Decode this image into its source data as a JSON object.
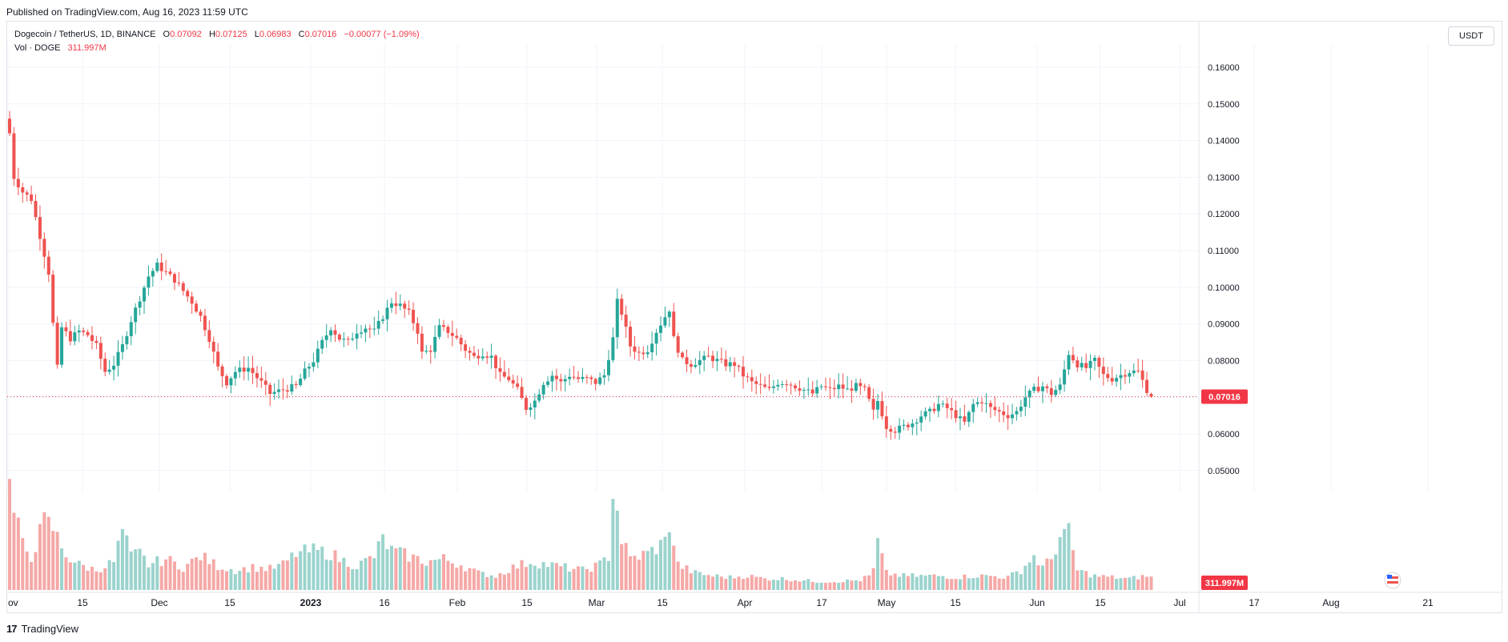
{
  "header": {
    "published": "Published on TradingView.com, Aug 16, 2023 11:59 UTC"
  },
  "legend": {
    "symbol": "Dogecoin / TetherUS, 1D, BINANCE",
    "open_label": "O",
    "open": "0.07092",
    "high_label": "H",
    "high": "0.07125",
    "low_label": "L",
    "low": "0.06983",
    "close_label": "C",
    "close": "0.07016",
    "change": "−0.00077 (−1.09%)",
    "volume_label": "Vol · DOGE",
    "volume": "311.997M"
  },
  "currency_button": "USDT",
  "footer": {
    "logo": "17",
    "brand": "TradingView"
  },
  "colors": {
    "up": "#26a69a",
    "down": "#ef5350",
    "up_volume": "#9bd3cd",
    "down_volume": "#f5a8a6",
    "last_price": "#f23645"
  },
  "chart_data": {
    "type": "candlestick",
    "y_axis": {
      "ticks": [
        "0.16000",
        "0.15000",
        "0.14000",
        "0.13000",
        "0.12000",
        "0.11000",
        "0.10000",
        "0.09000",
        "0.08000",
        "0.07000",
        "0.06000",
        "0.05000"
      ],
      "range": [
        0.046,
        0.167
      ]
    },
    "x_axis": {
      "labels": [
        "ov",
        "15",
        "Dec",
        "15",
        "2023",
        "16",
        "Feb",
        "15",
        "Mar",
        "15",
        "Apr",
        "17",
        "May",
        "15",
        "Jun",
        "15",
        "Jul",
        "17",
        "Aug",
        "21"
      ]
    },
    "last_price": 0.07016,
    "last_price_label": "0.07016",
    "last_volume_label": "311.997M",
    "grid": true,
    "legend_position": "top-left",
    "price_anchors": [
      [
        0,
        0.142
      ],
      [
        1,
        0.13
      ],
      [
        3,
        0.126
      ],
      [
        5,
        0.124
      ],
      [
        7,
        0.114
      ],
      [
        9,
        0.104
      ],
      [
        10,
        0.09
      ],
      [
        11,
        0.078
      ],
      [
        12,
        0.089
      ],
      [
        14,
        0.086
      ],
      [
        16,
        0.088
      ],
      [
        18,
        0.087
      ],
      [
        20,
        0.084
      ],
      [
        22,
        0.077
      ],
      [
        24,
        0.079
      ],
      [
        26,
        0.084
      ],
      [
        28,
        0.091
      ],
      [
        30,
        0.097
      ],
      [
        32,
        0.103
      ],
      [
        34,
        0.106
      ],
      [
        36,
        0.104
      ],
      [
        38,
        0.102
      ],
      [
        40,
        0.099
      ],
      [
        42,
        0.096
      ],
      [
        44,
        0.092
      ],
      [
        46,
        0.086
      ],
      [
        48,
        0.078
      ],
      [
        50,
        0.074
      ],
      [
        52,
        0.077
      ],
      [
        55,
        0.078
      ],
      [
        58,
        0.074
      ],
      [
        60,
        0.071
      ],
      [
        63,
        0.072
      ],
      [
        66,
        0.073
      ],
      [
        68,
        0.077
      ],
      [
        70,
        0.08
      ],
      [
        72,
        0.085
      ],
      [
        74,
        0.089
      ],
      [
        76,
        0.086
      ],
      [
        78,
        0.085
      ],
      [
        80,
        0.088
      ],
      [
        82,
        0.089
      ],
      [
        84,
        0.088
      ],
      [
        86,
        0.092
      ],
      [
        88,
        0.096
      ],
      [
        90,
        0.095
      ],
      [
        92,
        0.093
      ],
      [
        94,
        0.088
      ],
      [
        95,
        0.082
      ],
      [
        97,
        0.083
      ],
      [
        99,
        0.089
      ],
      [
        101,
        0.088
      ],
      [
        103,
        0.086
      ],
      [
        105,
        0.083
      ],
      [
        107,
        0.081
      ],
      [
        109,
        0.082
      ],
      [
        111,
        0.081
      ],
      [
        113,
        0.076
      ],
      [
        115,
        0.075
      ],
      [
        117,
        0.072
      ],
      [
        119,
        0.067
      ],
      [
        121,
        0.069
      ],
      [
        123,
        0.074
      ],
      [
        125,
        0.076
      ],
      [
        127,
        0.074
      ],
      [
        129,
        0.076
      ],
      [
        131,
        0.075
      ],
      [
        133,
        0.075
      ],
      [
        135,
        0.074
      ],
      [
        137,
        0.076
      ],
      [
        139,
        0.086
      ],
      [
        140,
        0.096
      ],
      [
        141,
        0.093
      ],
      [
        143,
        0.084
      ],
      [
        145,
        0.082
      ],
      [
        147,
        0.083
      ],
      [
        149,
        0.088
      ],
      [
        151,
        0.092
      ],
      [
        152,
        0.094
      ],
      [
        153,
        0.086
      ],
      [
        155,
        0.08
      ],
      [
        157,
        0.079
      ],
      [
        159,
        0.08
      ],
      [
        161,
        0.081
      ],
      [
        163,
        0.08
      ],
      [
        165,
        0.079
      ],
      [
        167,
        0.079
      ],
      [
        169,
        0.076
      ],
      [
        171,
        0.074
      ],
      [
        173,
        0.073
      ],
      [
        175,
        0.072
      ],
      [
        177,
        0.074
      ],
      [
        179,
        0.074
      ],
      [
        181,
        0.073
      ],
      [
        183,
        0.072
      ],
      [
        185,
        0.071
      ],
      [
        187,
        0.073
      ],
      [
        189,
        0.072
      ],
      [
        191,
        0.073
      ],
      [
        193,
        0.072
      ],
      [
        195,
        0.073
      ],
      [
        197,
        0.072
      ],
      [
        199,
        0.066
      ],
      [
        200,
        0.069
      ],
      [
        202,
        0.062
      ],
      [
        204,
        0.061
      ],
      [
        206,
        0.062
      ],
      [
        208,
        0.063
      ],
      [
        210,
        0.065
      ],
      [
        212,
        0.066
      ],
      [
        214,
        0.068
      ],
      [
        216,
        0.067
      ],
      [
        218,
        0.065
      ],
      [
        220,
        0.063
      ],
      [
        222,
        0.068
      ],
      [
        224,
        0.069
      ],
      [
        226,
        0.067
      ],
      [
        228,
        0.066
      ],
      [
        230,
        0.065
      ],
      [
        232,
        0.066
      ],
      [
        234,
        0.07
      ],
      [
        236,
        0.072
      ],
      [
        238,
        0.073
      ],
      [
        240,
        0.071
      ],
      [
        242,
        0.073
      ],
      [
        244,
        0.082
      ],
      [
        246,
        0.079
      ],
      [
        248,
        0.078
      ],
      [
        250,
        0.08
      ],
      [
        252,
        0.076
      ],
      [
        254,
        0.075
      ],
      [
        256,
        0.076
      ],
      [
        258,
        0.077
      ],
      [
        260,
        0.077
      ],
      [
        262,
        0.072
      ],
      [
        263,
        0.07016
      ]
    ],
    "volume_anchors": [
      [
        0,
        0.72
      ],
      [
        1,
        0.55
      ],
      [
        3,
        0.32
      ],
      [
        5,
        0.24
      ],
      [
        8,
        0.48
      ],
      [
        10,
        0.44
      ],
      [
        12,
        0.3
      ],
      [
        14,
        0.22
      ],
      [
        16,
        0.18
      ],
      [
        20,
        0.14
      ],
      [
        24,
        0.2
      ],
      [
        26,
        0.42
      ],
      [
        28,
        0.24
      ],
      [
        30,
        0.26
      ],
      [
        32,
        0.18
      ],
      [
        36,
        0.22
      ],
      [
        40,
        0.16
      ],
      [
        44,
        0.24
      ],
      [
        48,
        0.17
      ],
      [
        52,
        0.14
      ],
      [
        56,
        0.16
      ],
      [
        60,
        0.15
      ],
      [
        63,
        0.18
      ],
      [
        66,
        0.26
      ],
      [
        70,
        0.28
      ],
      [
        74,
        0.26
      ],
      [
        76,
        0.22
      ],
      [
        80,
        0.17
      ],
      [
        84,
        0.24
      ],
      [
        86,
        0.36
      ],
      [
        88,
        0.28
      ],
      [
        92,
        0.24
      ],
      [
        96,
        0.2
      ],
      [
        100,
        0.22
      ],
      [
        104,
        0.18
      ],
      [
        108,
        0.12
      ],
      [
        112,
        0.1
      ],
      [
        116,
        0.16
      ],
      [
        120,
        0.2
      ],
      [
        124,
        0.18
      ],
      [
        128,
        0.16
      ],
      [
        132,
        0.14
      ],
      [
        136,
        0.18
      ],
      [
        138,
        0.24
      ],
      [
        139,
        0.72
      ],
      [
        140,
        0.56
      ],
      [
        141,
        0.36
      ],
      [
        143,
        0.22
      ],
      [
        147,
        0.26
      ],
      [
        151,
        0.34
      ],
      [
        152,
        0.48
      ],
      [
        154,
        0.18
      ],
      [
        158,
        0.12
      ],
      [
        162,
        0.1
      ],
      [
        166,
        0.09
      ],
      [
        170,
        0.1
      ],
      [
        174,
        0.08
      ],
      [
        178,
        0.08
      ],
      [
        182,
        0.07
      ],
      [
        186,
        0.06
      ],
      [
        190,
        0.06
      ],
      [
        196,
        0.07
      ],
      [
        198,
        0.1
      ],
      [
        199,
        0.14
      ],
      [
        200,
        0.34
      ],
      [
        202,
        0.12
      ],
      [
        206,
        0.1
      ],
      [
        210,
        0.1
      ],
      [
        214,
        0.1
      ],
      [
        218,
        0.09
      ],
      [
        222,
        0.1
      ],
      [
        226,
        0.1
      ],
      [
        230,
        0.09
      ],
      [
        233,
        0.14
      ],
      [
        236,
        0.24
      ],
      [
        238,
        0.16
      ],
      [
        240,
        0.22
      ],
      [
        242,
        0.38
      ],
      [
        244,
        0.4
      ],
      [
        246,
        0.14
      ],
      [
        250,
        0.1
      ],
      [
        254,
        0.09
      ],
      [
        258,
        0.08
      ],
      [
        262,
        0.1
      ],
      [
        263,
        0.09
      ]
    ]
  }
}
